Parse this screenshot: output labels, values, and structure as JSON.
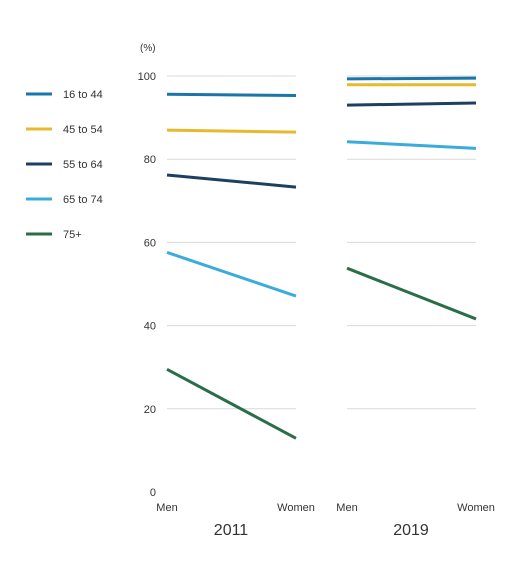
{
  "chart_data": {
    "type": "line",
    "unit_label": "(%)",
    "y_ticks": [
      "0",
      "20",
      "40",
      "60",
      "80",
      "100"
    ],
    "ylim": [
      0,
      100
    ],
    "grid": true,
    "legend_position": "left",
    "x_categories": [
      "Men",
      "Women"
    ],
    "panels": [
      "2011",
      "2019"
    ],
    "series": [
      {
        "name": "16 to 44",
        "color": "#1b75a8",
        "values": {
          "2011": [
            95.6,
            95.3
          ],
          "2019": [
            99.3,
            99.5
          ]
        }
      },
      {
        "name": "45 to 54",
        "color": "#e7b92c",
        "values": {
          "2011": [
            87.0,
            86.5
          ],
          "2019": [
            97.9,
            97.9
          ]
        }
      },
      {
        "name": "55 to 64",
        "color": "#1f3f61",
        "values": {
          "2011": [
            76.2,
            73.3
          ],
          "2019": [
            93.0,
            93.5
          ]
        }
      },
      {
        "name": "65 to 74",
        "color": "#3aacdc",
        "values": {
          "2011": [
            57.6,
            47.1
          ],
          "2019": [
            84.2,
            82.6
          ]
        }
      },
      {
        "name": "75+",
        "color": "#2a6e49",
        "values": {
          "2011": [
            29.5,
            12.9
          ],
          "2019": [
            53.8,
            41.6
          ]
        }
      }
    ]
  }
}
